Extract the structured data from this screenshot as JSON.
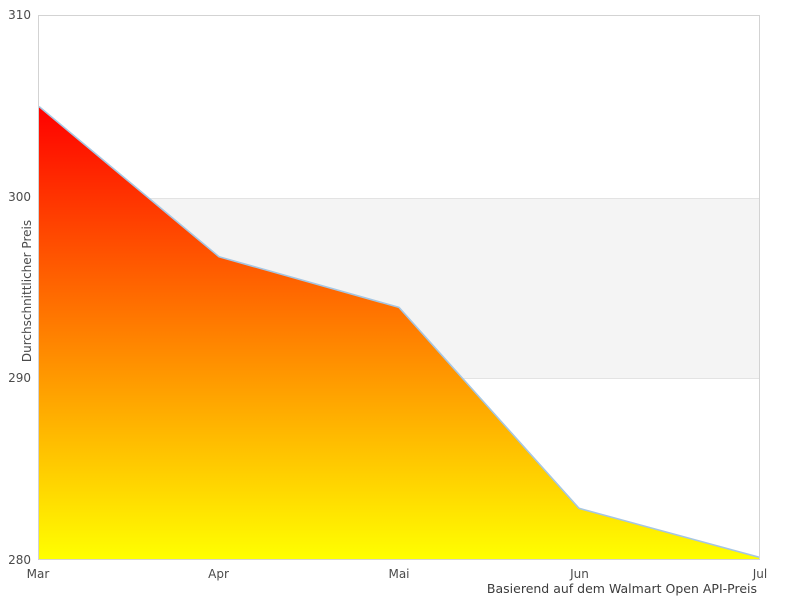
{
  "chart_data": {
    "type": "area",
    "x": [
      "Mar",
      "Apr",
      "Mai",
      "Jun",
      "Jul"
    ],
    "values": [
      305.0,
      296.7,
      293.9,
      282.8,
      280.1
    ],
    "series_name": "Durchschnittlicher Preis",
    "ylabel": "Durchschnittlicher Preis",
    "xlabel": "Basierend auf dem Walmart Open API-Preis",
    "title": "",
    "ylim": [
      280,
      310
    ],
    "yticks": [
      310,
      300,
      290,
      280
    ],
    "legend": "none",
    "grid": "off",
    "band": {
      "from": 290,
      "to": 300,
      "fill": "#f4f4f4",
      "edge": "#e3e3e3"
    },
    "area_gradient": {
      "top": "#ff0000",
      "bottom": "#ffff00"
    },
    "line_color": "#a6c6e2",
    "border_color": "#d3d3d3",
    "text_color": "#4b4b4b"
  }
}
